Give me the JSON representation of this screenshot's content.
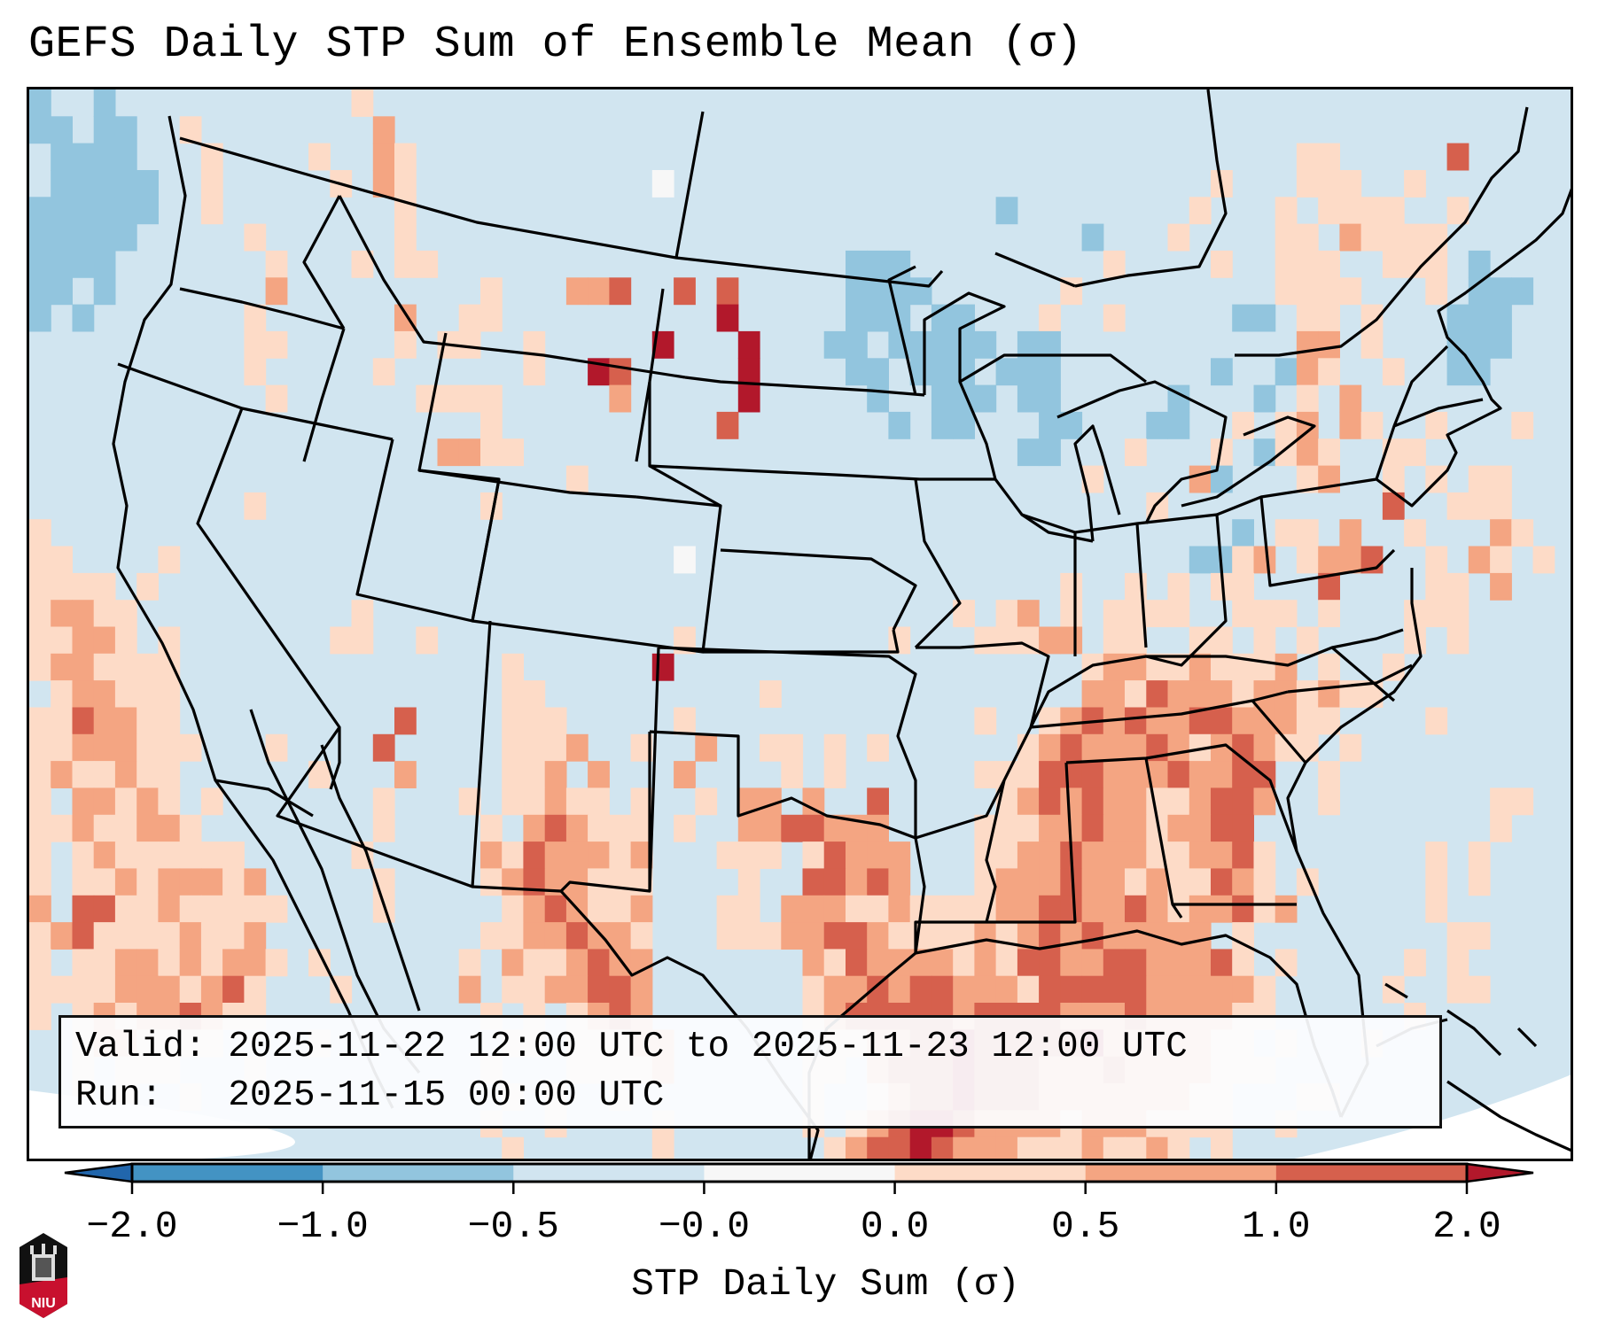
{
  "title": "GEFS Daily STP Sum of Ensemble Mean (σ)",
  "annotation": {
    "valid_label": "Valid:",
    "valid_value": "2025-11-22 12:00 UTC to 2025-11-23 12:00 UTC",
    "run_label": "Run:",
    "run_value": "2025-11-15 00:00 UTC"
  },
  "colorbar": {
    "label": "STP Daily Sum (σ)",
    "ticks": [
      "-2.0",
      "-1.0",
      "-0.5",
      "-0.0",
      "0.0",
      "0.5",
      "1.0",
      "2.0"
    ],
    "extend": "both",
    "under_color": "#2166ac",
    "over_color": "#b2182b",
    "bins": [
      {
        "range": "-2.0 to -1.0",
        "color": "#4393c3"
      },
      {
        "range": "-1.0 to -0.5",
        "color": "#92c5de"
      },
      {
        "range": "-0.5 to -0.0",
        "color": "#d1e5f0"
      },
      {
        "range": "-0.0 to 0.0",
        "color": "#f7f7f7"
      },
      {
        "range": "0.0 to 0.5",
        "color": "#fddbc7"
      },
      {
        "range": "0.5 to 1.0",
        "color": "#f4a582"
      },
      {
        "range": "1.0 to 2.0",
        "color": "#d6604d"
      }
    ]
  },
  "logo": {
    "text": "NIU"
  },
  "map": {
    "background_color": "#d1e5f0",
    "legend_codes": {
      ".": "-0.5 to -0.0",
      "b": "-1.0 to -0.5",
      "w": "-0.0 to 0.0",
      "1": "0.0 to 0.5",
      "2": "0.5 to 1.0",
      "3": "1.0 to 2.0",
      "4": ">2.0"
    },
    "grid_rows": [
      "b..b...........1........................................................",
      "bb.bb..1........2.......................................................",
      ".bbbb...1....1..21.........................................11.....3.....",
      ".bbbbb..1.....1.21...........w.........................1...111..1.......",
      "bbbbbb..1........1...........................b........1...1.1111..1.....",
      "bbbbb.....1......1...............................b...1....11.21111......",
      "bbbb.......1...1.11...................bbb.........1....1..111..111.b....",
      "bb.b.......2.........1...223..3.3.....bbbb......1.........1111...1.bbb..",
      "b.b.......1......2..11..........4.....bbb.bb...1..1.....bb.11.1...bbb...",
      "..........11.....1.11..1.....4...4...bb.bbbbb.bb...........22.1...bbb...",
      "..........1.....1......1..43.....4....bb.bbb.bbb.......b..b21..1..bb....",
      "...........1......1111.....2.....4.....b..bbb.bb.....b...b.1.2..........",
      ".....................1..........3.......b.bb...bb...bb..1.12.21..1...1..",
      "...................2211.......................bb...1...1.b121..11.......",
      ".........................1.......................1....2b...12..1.1.11...",
      "..........1..........1..............................1..........3..111...",
      "1.......................................................b.11.2..1...21..",
      "11....1.......................w.......................bb12.1223..1.21.1.",
      "1111.1..........................................1..1.1.11...3....11.2...",
      "12211..........1...........................1.12.1.1111..111.1...111.....",
      "11221.1.......11..1...........1.........1...11122.11..11.1.1....1.1.....",
      "1221111...............1......4...................1221121112.1..1........",
      ".122111...............11..........1..............22132221221211.........",
      "1132211..........3....111.....1.............1..12323223322211....1......",
      "11222111...1....3.....1112..1..2..11.1.1......12322232123211.1..........",
      "1211211......1...2....112.2...2....1.1......11133322232233..1...........",
      "1.22121.1.......1...1.11211.1..1.22.2..3.....1232322112332..1.......11..",
      "11211221........1....1.232111.1..2233222....1112232212233...........1...",
      "1.12111111.....1.....21322212...111.13222...11223222112231.......1.1....",
      "1.112122212.....1....12322111....1..33232...12223221211321.1.....1.1....",
      "2.3311211111....1.....1232112...11.222112111122332232122312......1......",
      "12311112112..........11223221...11122332111121232322222.1.........11....",
      "1.1122121221.1......1.2112322.......213222212133223322231.1.....1.1.....",
      "11112221231...1.....2.1122332.......1223233222133333222221.....1..11....",
      "1.121223211..........1.1.1232.......1233333233332223222211......1.......",
      "..1221111....1........11.11122.......11223343333342222211.1...1.........",
      "..1.111...1..........1...11112......11.2333433322232222111..............",
      "..1.1..1..............1.1..1........1..12334333222222211...11...........",
      "..1...1..............1..1....1......1.123443222212221111..1.............",
      "......................1......1.......12334322211121121.1................"
    ]
  }
}
